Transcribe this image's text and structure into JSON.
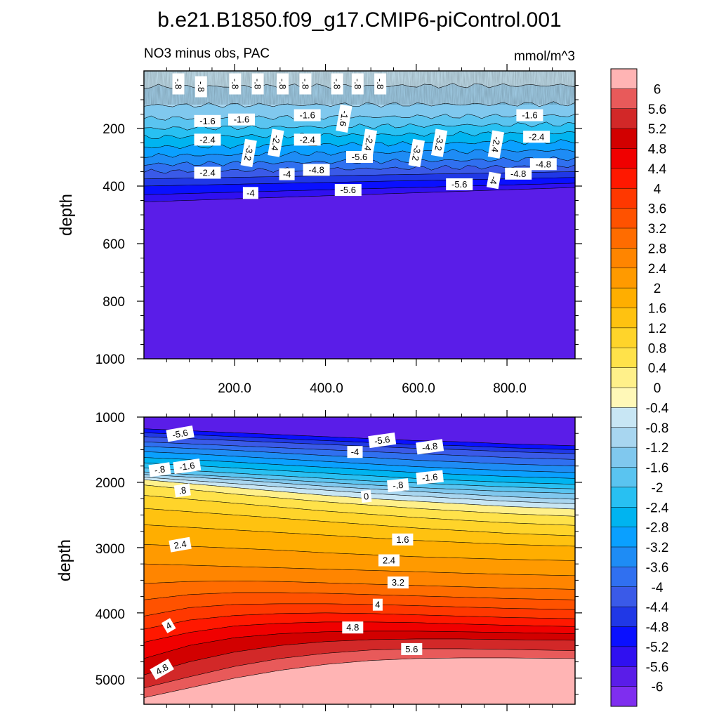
{
  "title": "b.e21.B1850.f09_g17.CMIP6-piControl.001",
  "chart_data": {
    "type": "contour",
    "variable_label": "NO3 minus obs, PAC",
    "units": "mmol/m^3",
    "colorbar": {
      "levels": [
        "-6",
        "-5.6",
        "-5.2",
        "-4.8",
        "-4.4",
        "-4",
        "-3.6",
        "-3.2",
        "-2.8",
        "-2.4",
        "-2",
        "-1.6",
        "-1.2",
        "-0.8",
        "-0.4",
        "0",
        "0.4",
        "0.8",
        "1.2",
        "1.6",
        "2",
        "2.4",
        "2.8",
        "3.2",
        "3.6",
        "4",
        "4.4",
        "4.8",
        "5.2",
        "5.6",
        "6"
      ],
      "colors": [
        "#7f2eef",
        "#5a1de8",
        "#3010f0",
        "#0a10ff",
        "#2038e6",
        "#3a5ae8",
        "#3070f0",
        "#1e8cf5",
        "#0aa0ff",
        "#00b4f0",
        "#28c0f2",
        "#5ac4f0",
        "#80c8ee",
        "#a8d6f0",
        "#c8e6f4",
        "#fff8b8",
        "#fff08a",
        "#ffe24a",
        "#ffd42a",
        "#ffc210",
        "#ffae00",
        "#ff9a00",
        "#ff8500",
        "#ff6c00",
        "#ff5200",
        "#ff3800",
        "#ff1800",
        "#f00000",
        "#d20000",
        "#d22828",
        "#e85a5a",
        "#ffb4b4"
      ]
    },
    "panels": [
      {
        "name": "upper",
        "ylabel": "depth",
        "ylim": [
          1000,
          0
        ],
        "xlim": [
          0,
          950
        ],
        "yticks": [
          "200",
          "400",
          "600",
          "800",
          "1000"
        ],
        "xticks": [
          "200.0",
          "400.0",
          "600.0",
          "800.0"
        ],
        "contour_labels": [
          "-.8",
          "-.8",
          "-.8",
          "-.8",
          "-.8",
          "-.8",
          "-.8",
          "-.8",
          "-.8",
          "-1.6",
          "-1.6",
          "-1.6",
          "-1.6",
          "-1.6",
          "-2.4",
          "-3.2",
          "-2.4",
          "-2.4",
          "-3.2",
          "-2.4",
          "-3.2",
          "-2.4",
          "-2.4",
          "-2.4",
          "-4",
          "-4.8",
          "-4",
          "-4.8",
          "-4.8",
          "-4",
          "-5.6",
          "-5.6",
          "-5.6"
        ]
      },
      {
        "name": "lower",
        "ylabel": "depth",
        "ylim": [
          5400,
          1000
        ],
        "xlim": [
          0,
          950
        ],
        "yticks": [
          "1000",
          "2000",
          "3000",
          "4000",
          "5000"
        ],
        "contour_labels": [
          "-5.6",
          "-5.6",
          "-4.8",
          "-4",
          "-1.6",
          "-.8",
          "-1.6",
          "-.8",
          ".8",
          "0",
          "2.4",
          "1.6",
          "2.4",
          "3.2",
          "4",
          "4.8",
          "5.6",
          "4",
          "4.8"
        ]
      }
    ]
  }
}
